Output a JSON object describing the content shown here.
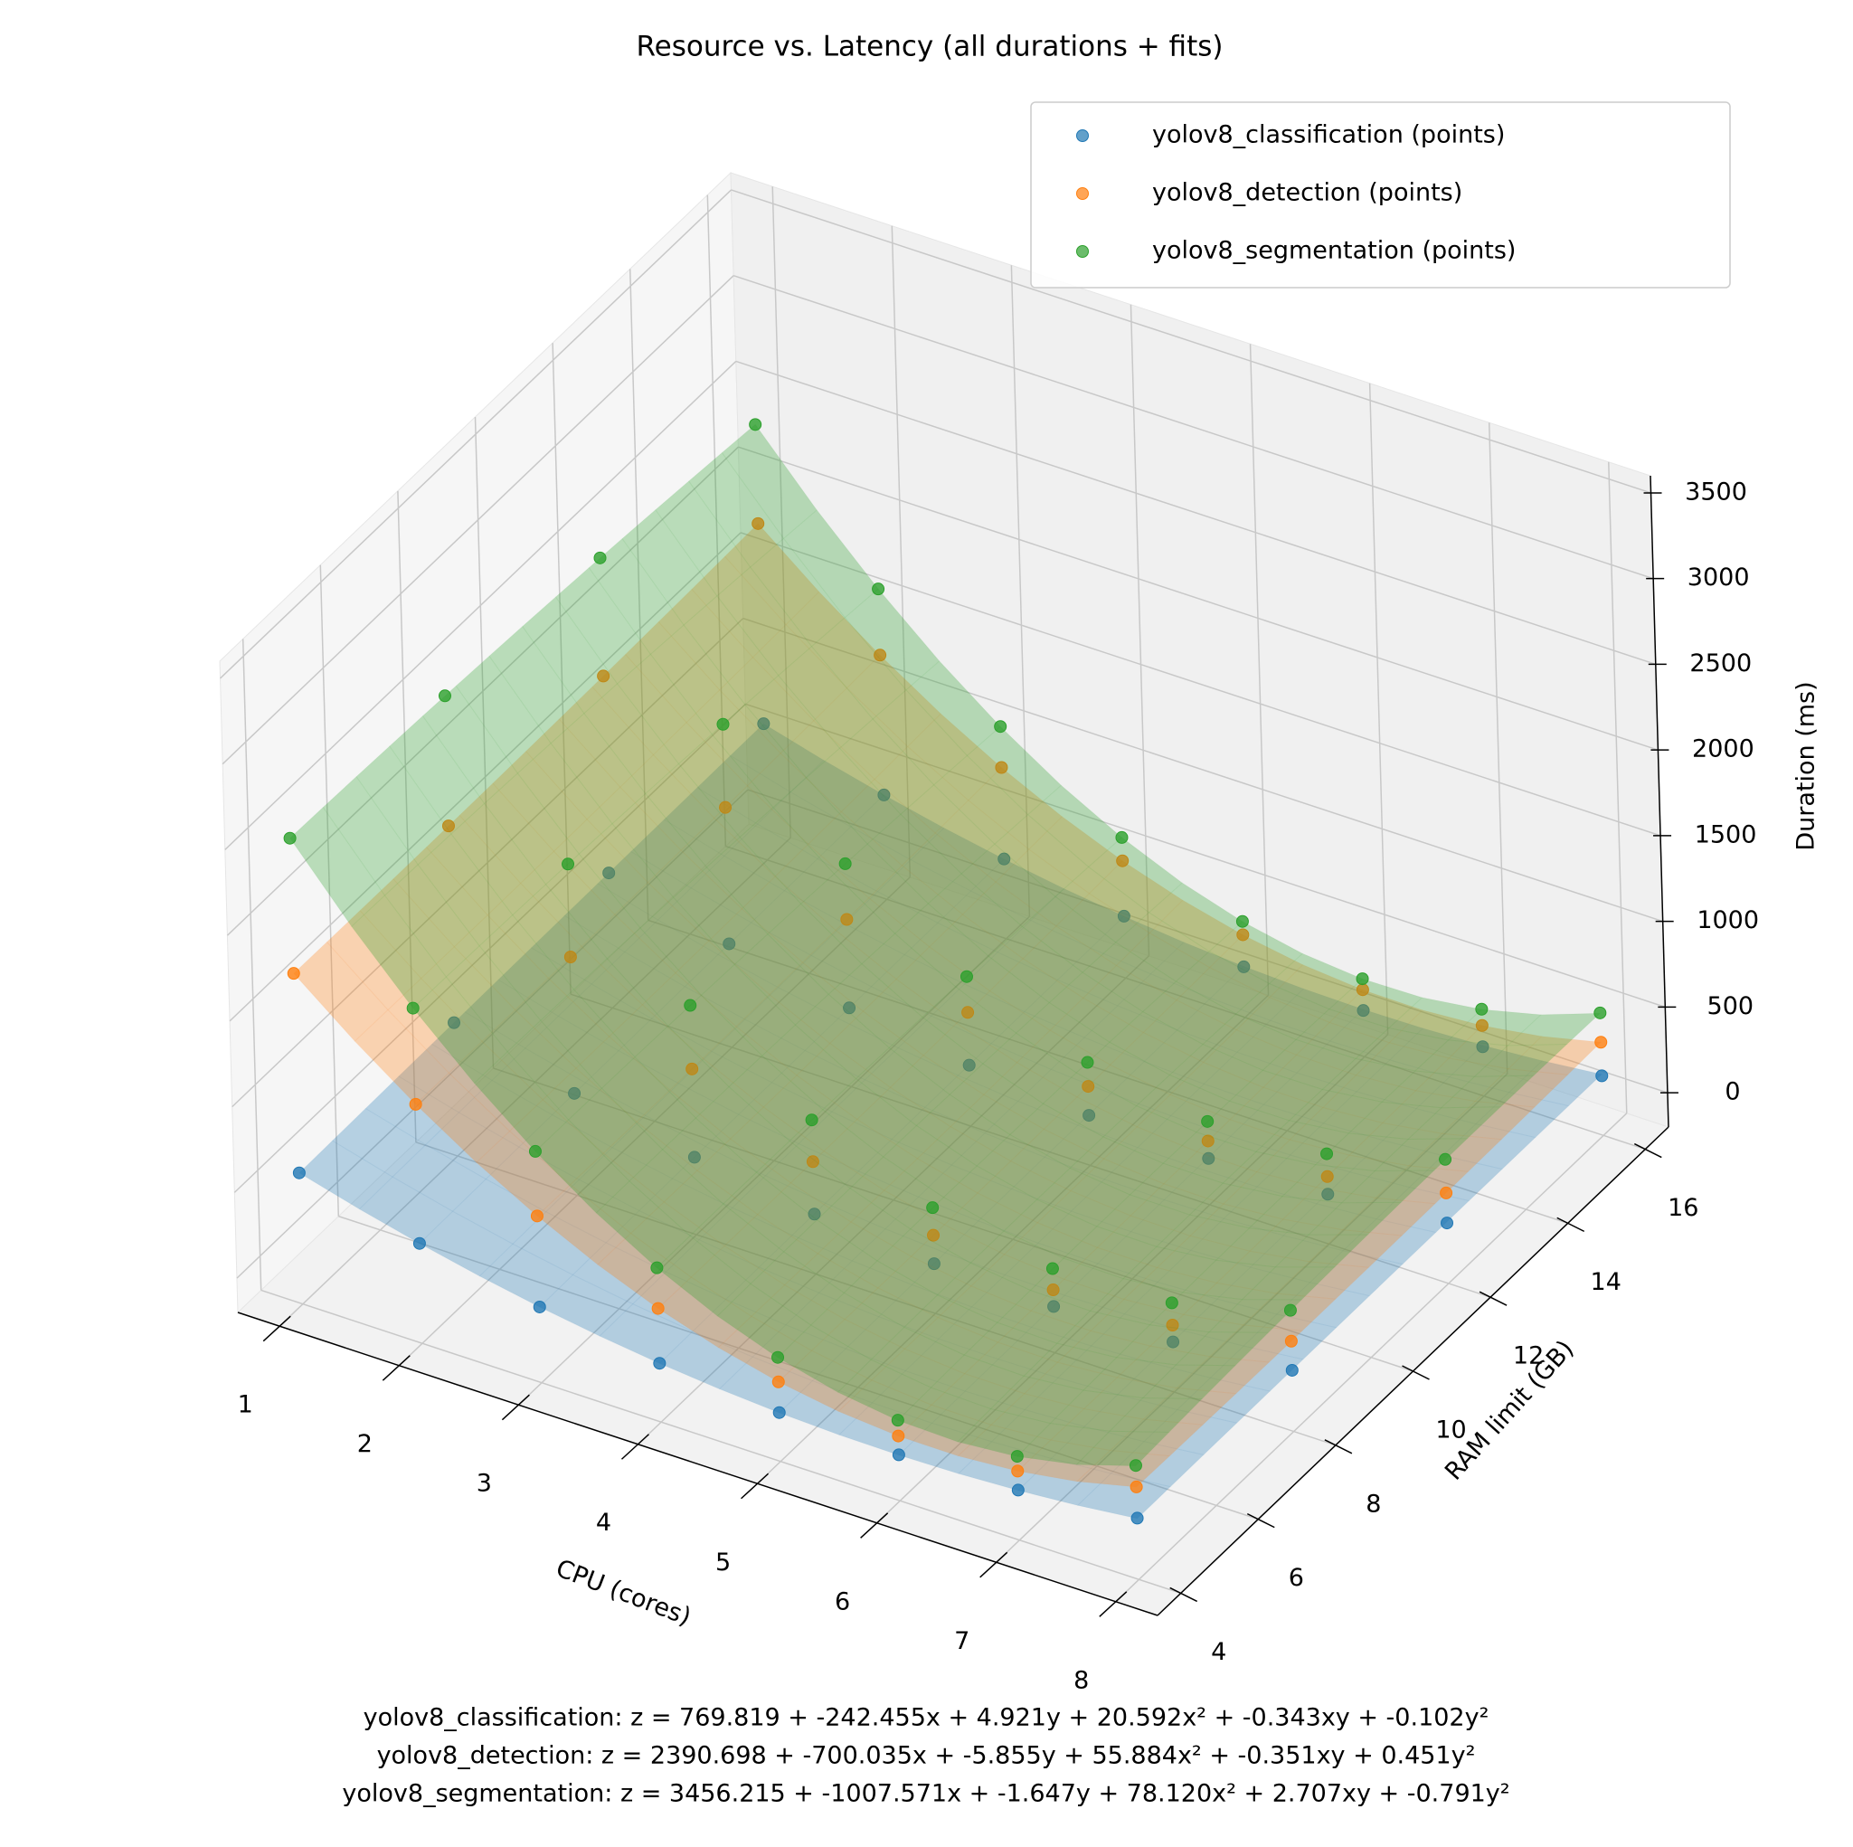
{
  "chart_data": {
    "type": "scatter3d",
    "title": "Resource vs. Latency (all durations + fits)",
    "xlabel": "CPU (cores)",
    "ylabel": "RAM limit (GB)",
    "zlabel": "Duration (ms)",
    "xlim": [
      0.65,
      8.35
    ],
    "ylim": [
      3.4,
      16.6
    ],
    "zlim": [
      -200,
      3600
    ],
    "xticks": [
      1,
      2,
      3,
      4,
      5,
      6,
      7,
      8
    ],
    "yticks": [
      4,
      6,
      8,
      10,
      12,
      14,
      16
    ],
    "zticks": [
      0,
      500,
      1000,
      1500,
      2000,
      2500,
      3000,
      3500
    ],
    "grid": true,
    "legend": "upper right",
    "x": [
      1,
      1,
      1,
      1,
      2,
      2,
      2,
      2,
      3,
      3,
      3,
      3,
      4,
      4,
      4,
      4,
      5,
      5,
      5,
      5,
      6,
      6,
      6,
      6,
      7,
      7,
      7,
      7,
      8,
      8,
      8,
      8
    ],
    "y": [
      4,
      8,
      12,
      16,
      4,
      8,
      12,
      16,
      4,
      8,
      12,
      16,
      4,
      8,
      12,
      16,
      4,
      8,
      12,
      16,
      4,
      8,
      12,
      16,
      4,
      8,
      12,
      16,
      4,
      8,
      12,
      16
    ],
    "series": [
      {
        "name": "yolov8_classification (points)",
        "color": "#1f77b4",
        "values": [
          565,
          578,
          588,
          595,
          383,
          395,
          404,
          409,
          242,
          252,
          260,
          265,
          143,
          150,
          155,
          161,
          85,
          90,
          92,
          95,
          68,
          70,
          70,
          70,
          92,
          93,
          91,
          88,
          158,
          157,
          153,
          148
        ],
        "fit": {
          "equation": "yolov8_classification: z = 769.819 + -242.455x + 4.921y + 20.592x² + -0.343xy + -0.102y²",
          "coefficients": [
            769.819,
            -242.455,
            4.921,
            20.592,
            -0.343,
            -0.102
          ]
        }
      },
      {
        "name": "yolov8_detection (points)",
        "color": "#ff7f0e",
        "values": [
          1729,
          1726,
          1737,
          1763,
          1195,
          1191,
          1200,
          1225,
          773,
          767,
          776,
          799,
          463,
          456,
          463,
          484,
          264,
          256,
          261,
          282,
          178,
          167,
          172,
          191,
          203,
          191,
          194,
          212,
          340,
          327,
          328,
          344
        ],
        "fit": {
          "equation": "yolov8_detection: z = 2390.698 + -700.035x + -5.855y + 55.884x² + -0.351xy + 0.451y²",
          "coefficients": [
            2390.698,
            -700.035,
            -5.855,
            55.884,
            -0.351,
            0.451
          ]
        }
      },
      {
        "name": "yolov8_segmentation (points)",
        "color": "#2ca02c",
        "values": [
          2518,
          2485,
          2426,
          2341,
          1756,
          1733,
          1685,
          1611,
          1150,
          1138,
          1101,
          1038,
          700,
          699,
          672,
          620,
          407,
          417,
          401,
          360,
          270,
          291,
          286,
          255,
          289,
          321,
          327,
          307,
          465,
          507,
          524,
          515
        ],
        "fit": {
          "equation": "yolov8_segmentation: z = 3456.215 + -1007.571x + -1.647y + 78.120x² + 2.707xy + -0.791y²",
          "coefficients": [
            3456.215,
            -1007.571,
            -1.647,
            78.12,
            2.707,
            -0.791
          ]
        }
      }
    ]
  }
}
